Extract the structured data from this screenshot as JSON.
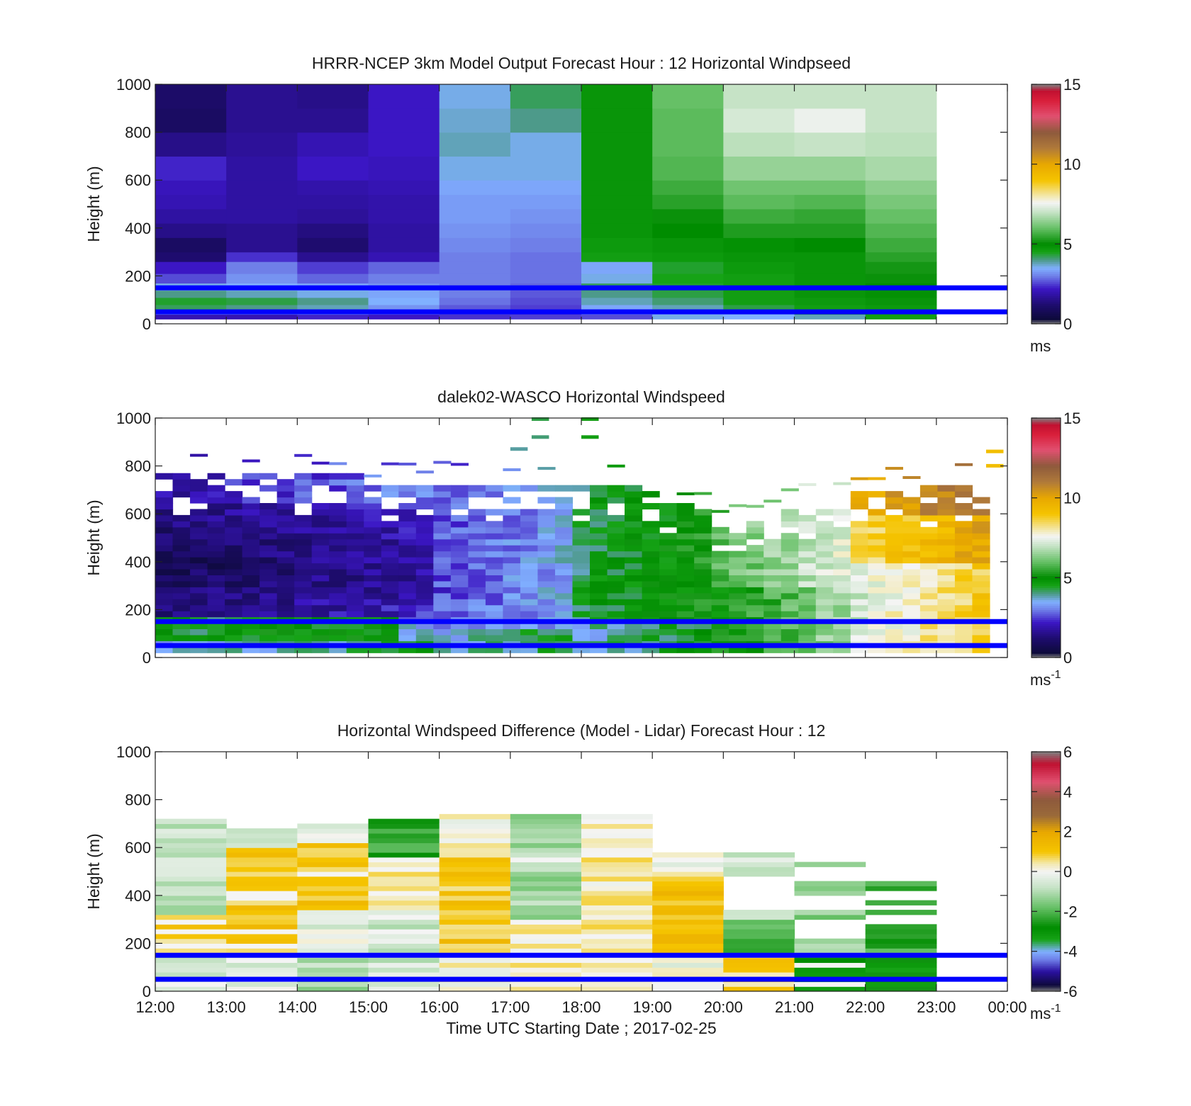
{
  "figure": {
    "x_ticks": [
      "12:00",
      "13:00",
      "14:00",
      "15:00",
      "16:00",
      "17:00",
      "18:00",
      "19:00",
      "20:00",
      "21:00",
      "22:00",
      "23:00",
      "00:00"
    ],
    "xlabel": "Time UTC  Starting Date ; 2017-02-25",
    "reference_lines_m": [
      150,
      50
    ],
    "reference_line_color": "#0000ff"
  },
  "chart_data": [
    {
      "type": "heatmap",
      "title": "HRRR-NCEP 3km Model Output   Forecast Hour : 12 Horizontal Windpseed",
      "ylabel": "Height (m)",
      "ylim": [
        0,
        1000
      ],
      "y_ticks": [
        "0",
        "200",
        "400",
        "600",
        "800",
        "1000"
      ],
      "colorbar": {
        "range": [
          0,
          15
        ],
        "ticks": [
          "0",
          "5",
          "10",
          "15"
        ],
        "unit_base": "ms",
        "unit_exp": ""
      },
      "x_hours": [
        12,
        13,
        14,
        15,
        16,
        17,
        18,
        19,
        20,
        21,
        22
      ],
      "height_bins_m": [
        [
          20,
          40
        ],
        [
          40,
          60
        ],
        [
          60,
          80
        ],
        [
          80,
          110
        ],
        [
          110,
          140
        ],
        [
          140,
          170
        ],
        [
          170,
          210
        ],
        [
          210,
          260
        ],
        [
          260,
          300
        ],
        [
          300,
          360
        ],
        [
          360,
          420
        ],
        [
          420,
          480
        ],
        [
          480,
          540
        ],
        [
          540,
          600
        ],
        [
          600,
          700
        ],
        [
          700,
          800
        ],
        [
          800,
          900
        ],
        [
          900,
          1000
        ]
      ],
      "values_ms": [
        [
          2.0,
          2.0,
          2.3,
          2.2,
          2.4,
          2.5,
          2.6,
          3.6,
          3.5,
          3.8,
          4.6
        ],
        [
          3.4,
          3.3,
          3.5,
          3.0,
          2.6,
          2.4,
          3.2,
          3.5,
          3.6,
          4.4,
          4.6
        ],
        [
          4.2,
          4.0,
          3.8,
          3.2,
          2.7,
          2.5,
          3.4,
          3.8,
          4.3,
          4.6,
          4.7
        ],
        [
          4.4,
          4.3,
          4.0,
          3.5,
          2.9,
          2.6,
          3.8,
          4.1,
          4.6,
          4.7,
          4.8
        ],
        [
          4.0,
          3.8,
          3.6,
          3.4,
          3.0,
          2.7,
          4.0,
          4.3,
          4.6,
          4.8,
          4.9
        ],
        [
          3.6,
          3.5,
          3.4,
          3.2,
          3.0,
          2.8,
          4.2,
          4.4,
          4.6,
          4.8,
          5.0
        ],
        [
          2.6,
          3.2,
          2.8,
          3.0,
          3.0,
          2.9,
          3.6,
          4.5,
          4.6,
          4.8,
          5.1
        ],
        [
          2.2,
          3.0,
          2.5,
          2.8,
          3.0,
          2.9,
          3.4,
          4.4,
          4.7,
          4.8,
          5.2
        ],
        [
          1.2,
          2.4,
          1.6,
          2.0,
          3.0,
          2.9,
          4.6,
          4.7,
          4.8,
          4.8,
          5.4
        ],
        [
          1.0,
          1.6,
          1.2,
          1.8,
          3.1,
          3.0,
          4.7,
          4.8,
          4.9,
          5.0,
          5.6
        ],
        [
          1.5,
          1.6,
          1.4,
          1.8,
          3.2,
          3.1,
          4.8,
          5.0,
          5.3,
          5.3,
          5.8
        ],
        [
          1.8,
          1.8,
          1.7,
          1.9,
          3.3,
          3.2,
          4.8,
          5.1,
          5.6,
          5.5,
          6.0
        ],
        [
          2.0,
          1.8,
          1.8,
          1.9,
          3.3,
          3.3,
          4.8,
          5.4,
          5.9,
          5.8,
          6.2
        ],
        [
          2.1,
          1.8,
          1.9,
          2.0,
          3.4,
          3.4,
          4.8,
          5.6,
          6.1,
          6.1,
          6.4
        ],
        [
          2.3,
          1.8,
          2.2,
          2.1,
          3.6,
          3.6,
          4.8,
          5.8,
          6.5,
          6.5,
          6.7
        ],
        [
          1.5,
          1.7,
          2.0,
          2.2,
          3.8,
          3.6,
          4.8,
          5.9,
          6.9,
          7.0,
          6.9
        ],
        [
          1.0,
          1.6,
          1.6,
          2.2,
          3.7,
          4.0,
          4.8,
          5.9,
          7.2,
          7.5,
          7.0
        ],
        [
          1.1,
          1.6,
          1.5,
          2.2,
          3.6,
          4.2,
          4.8,
          6.0,
          7.0,
          7.0,
          7.0
        ]
      ]
    },
    {
      "type": "heatmap",
      "title": "dalek02-WASCO  Horizontal Windspeed",
      "ylabel": "Height (m)",
      "ylim": [
        0,
        1000
      ],
      "y_ticks": [
        "0",
        "200",
        "400",
        "600",
        "800",
        "1000"
      ],
      "colorbar": {
        "range": [
          0,
          15
        ],
        "ticks": [
          "0",
          "5",
          "10",
          "15"
        ],
        "unit_base": "ms",
        "unit_exp": "-1"
      },
      "time_columns": 48,
      "height_bins_m": 32,
      "note_values": "lidar retrieval, 15-minute columns, 30 m gates; upper gates sparse"
    },
    {
      "type": "heatmap",
      "title": "Horizontal Windspeed Difference (Model - Lidar) Forecast Hour : 12",
      "ylabel": "Height (m)",
      "ylim": [
        0,
        1000
      ],
      "y_ticks": [
        "0",
        "200",
        "400",
        "600",
        "800",
        "1000"
      ],
      "colorbar": {
        "range": [
          -6,
          6
        ],
        "ticks": [
          "-6",
          "-4",
          "-2",
          "0",
          "2",
          "4",
          "6"
        ],
        "unit_base": "ms",
        "unit_exp": "-1"
      },
      "x_hours": [
        12,
        13,
        14,
        15,
        16,
        17,
        18,
        19,
        20,
        21,
        22
      ],
      "profile_top_m": [
        710,
        680,
        700,
        710,
        740,
        740,
        740,
        570,
        600,
        580,
        580
      ]
    }
  ],
  "colormap": {
    "speed_stops": [
      [
        0.0,
        "#808080"
      ],
      [
        0.3,
        "#0d0a3a"
      ],
      [
        1.2,
        "#1e0c6e"
      ],
      [
        2.2,
        "#3b16c4"
      ],
      [
        3.0,
        "#6f7fe8"
      ],
      [
        3.5,
        "#80b0ff"
      ],
      [
        4.0,
        "#4d9a8a"
      ],
      [
        4.5,
        "#16a316"
      ],
      [
        5.0,
        "#008c00"
      ],
      [
        6.0,
        "#66c066"
      ],
      [
        7.0,
        "#c6e3c6"
      ],
      [
        7.6,
        "#f4f4f4"
      ],
      [
        8.0,
        "#f3e9b0"
      ],
      [
        9.0,
        "#f5c400"
      ],
      [
        10.0,
        "#e8a800"
      ],
      [
        11.0,
        "#b07a3a"
      ],
      [
        12.0,
        "#8e5a3c"
      ],
      [
        13.0,
        "#e05070"
      ],
      [
        14.0,
        "#d81e3a"
      ],
      [
        14.6,
        "#c01030"
      ],
      [
        15.0,
        "#808080"
      ]
    ],
    "diff_stops": [
      [
        -6.0,
        "#808080"
      ],
      [
        -5.7,
        "#0d0a3a"
      ],
      [
        -5.0,
        "#2a10a0"
      ],
      [
        -4.4,
        "#6f7fe8"
      ],
      [
        -4.0,
        "#80b0ff"
      ],
      [
        -3.4,
        "#16a316"
      ],
      [
        -2.8,
        "#008c00"
      ],
      [
        -1.8,
        "#66c066"
      ],
      [
        -0.8,
        "#c6e3c6"
      ],
      [
        0.0,
        "#f4f4f4"
      ],
      [
        0.4,
        "#f3e9b0"
      ],
      [
        1.0,
        "#f5c400"
      ],
      [
        2.0,
        "#e8a800"
      ],
      [
        2.8,
        "#9a6a3a"
      ],
      [
        3.6,
        "#8e5a3c"
      ],
      [
        4.5,
        "#e05070"
      ],
      [
        5.4,
        "#c01030"
      ],
      [
        6.0,
        "#808080"
      ]
    ]
  }
}
